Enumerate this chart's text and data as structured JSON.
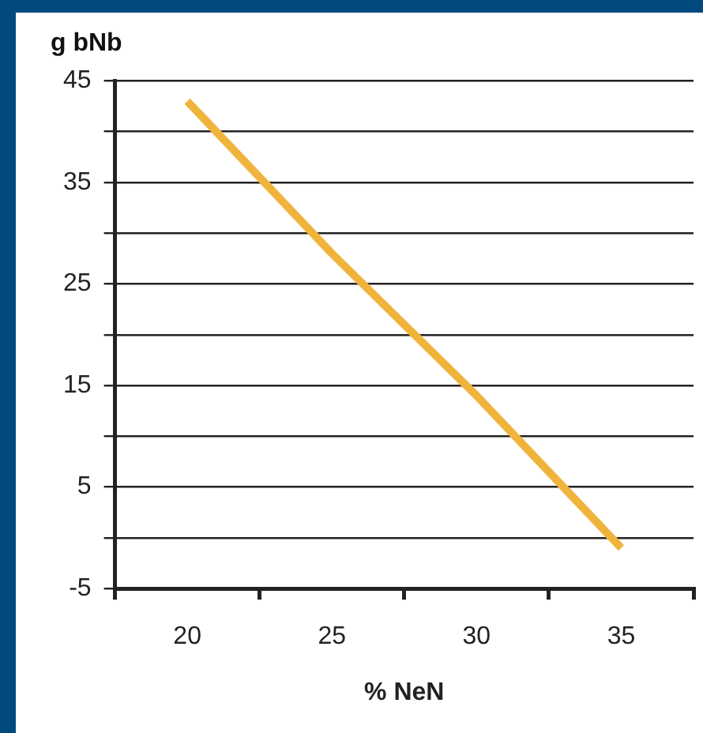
{
  "chart_data": {
    "type": "line",
    "xlabel": "% NeN",
    "ylabel": "g bNb",
    "categories": [
      "20",
      "25",
      "30",
      "35"
    ],
    "series": [
      {
        "color": "#f0b43c",
        "values": [
          43,
          28,
          14,
          -1
        ]
      }
    ],
    "ylim": [
      -5,
      45
    ],
    "yticks": [
      -5,
      {
        "value": 0,
        "label": null
      },
      5,
      {
        "value": 10,
        "label": null
      },
      15,
      {
        "value": 20,
        "label": null
      },
      25,
      {
        "value": 30,
        "label": null
      },
      35,
      {
        "value": 40,
        "label": null
      },
      45
    ],
    "grid": "y",
    "legend": false,
    "marker": "none",
    "line_style": "solid"
  }
}
